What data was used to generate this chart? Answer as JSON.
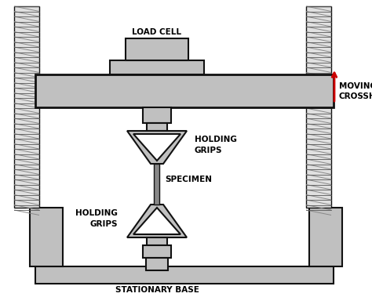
{
  "background_color": "#ffffff",
  "gray_fill": "#c0c0c0",
  "gray_light": "#d4d4d4",
  "gray_dark": "#a8a8a8",
  "dark_outline": "#111111",
  "red_arrow": "#cc0000",
  "font_family": "Arial",
  "labels": {
    "load_cell": "LOAD CELL",
    "moving_crosshead": "MOVING\nCROSSHEAD",
    "holding_grips_top": "HOLDING\nGRIPS",
    "specimen": "SPECIMEN",
    "holding_grips_bottom": "HOLDING\nGRIPS",
    "stationary_base": "STATIONARY BASE"
  },
  "label_fontsize": 7.5,
  "label_fontweight": "bold"
}
